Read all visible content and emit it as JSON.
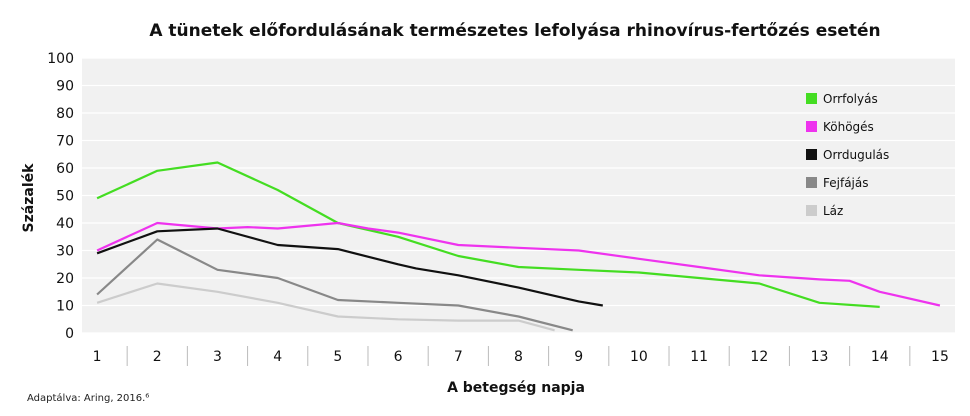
{
  "chart_data": {
    "type": "line",
    "title": "A tünetek előfordulásának természetes lefolyása rhinovírus-fertőzés esetén",
    "xlabel": "A betegség napja",
    "ylabel": "Százalék",
    "xlim": [
      0.75,
      15.25
    ],
    "ylim": [
      0,
      100
    ],
    "x_ticks": [
      "1",
      "2",
      "3",
      "4",
      "5",
      "6",
      "7",
      "8",
      "9",
      "10",
      "11",
      "12",
      "13",
      "14",
      "15"
    ],
    "y_ticks": [
      "0",
      "10",
      "20",
      "30",
      "40",
      "50",
      "60",
      "70",
      "80",
      "90",
      "100"
    ],
    "grid": "horizontal",
    "legend_position": "top-right",
    "series": [
      {
        "name": "Orrfolyás",
        "color": "#44dd22",
        "points": [
          [
            1,
            49
          ],
          [
            2,
            59
          ],
          [
            3,
            62
          ],
          [
            4,
            52
          ],
          [
            5,
            40
          ],
          [
            6,
            35
          ],
          [
            7,
            28
          ],
          [
            8,
            24
          ],
          [
            9,
            23
          ],
          [
            10,
            22
          ],
          [
            11,
            20
          ],
          [
            12,
            18
          ],
          [
            13,
            11
          ],
          [
            14,
            9.5
          ]
        ]
      },
      {
        "name": "Köhögés",
        "color": "#ee33ee",
        "points": [
          [
            1,
            30
          ],
          [
            2,
            40
          ],
          [
            3,
            38
          ],
          [
            3.5,
            38.5
          ],
          [
            4,
            38
          ],
          [
            5,
            40
          ],
          [
            5.5,
            38
          ],
          [
            6,
            36.5
          ],
          [
            7,
            32
          ],
          [
            8,
            31
          ],
          [
            9,
            30
          ],
          [
            10,
            27
          ],
          [
            11,
            24
          ],
          [
            12,
            21
          ],
          [
            13,
            19.5
          ],
          [
            13.5,
            19
          ],
          [
            14,
            15
          ],
          [
            15,
            10
          ]
        ]
      },
      {
        "name": "Orrdugulás",
        "color": "#111111",
        "points": [
          [
            1,
            29
          ],
          [
            2,
            37
          ],
          [
            3,
            38
          ],
          [
            4,
            32
          ],
          [
            5,
            30.5
          ],
          [
            6,
            25
          ],
          [
            6.3,
            23.5
          ],
          [
            7,
            21
          ],
          [
            8,
            16.5
          ],
          [
            9,
            11.5
          ],
          [
            9.4,
            10
          ]
        ]
      },
      {
        "name": "Fejfájás",
        "color": "#888888",
        "points": [
          [
            1,
            14
          ],
          [
            2,
            34
          ],
          [
            3,
            23
          ],
          [
            4,
            20
          ],
          [
            5,
            12
          ],
          [
            6,
            11
          ],
          [
            7,
            10
          ],
          [
            8,
            6
          ],
          [
            8.9,
            1
          ]
        ]
      },
      {
        "name": "Láz",
        "color": "#cccccc",
        "points": [
          [
            1,
            11
          ],
          [
            2,
            18
          ],
          [
            3,
            15
          ],
          [
            4,
            11
          ],
          [
            5,
            6
          ],
          [
            6,
            5
          ],
          [
            7,
            4.5
          ],
          [
            8,
            4.5
          ],
          [
            8.6,
            1
          ]
        ]
      }
    ]
  },
  "footnote": "Adaptálva: Aring, 2016.⁶"
}
